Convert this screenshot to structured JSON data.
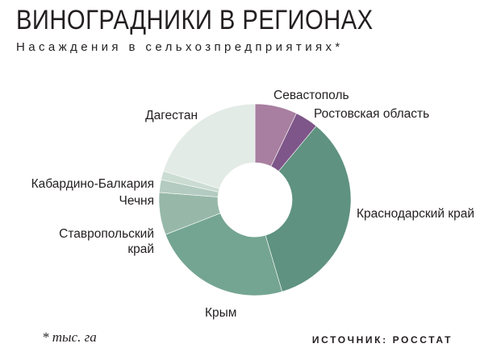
{
  "header": {
    "title": "ВИНОГРАДНИКИ В РЕГИОНАХ",
    "subtitle": "Насаждения в сельхозпредприятиях*"
  },
  "footer": {
    "footnote": "* тыс. га",
    "source": "ИСТОЧНИК: РОССТАТ"
  },
  "chart_data": {
    "type": "pie",
    "subtype": "donut",
    "unit": "тыс. га",
    "legend": "none",
    "categories": [
      "Севастополь",
      "Ростовская область",
      "Краснодарский край",
      "Крым",
      "Ставропольский край",
      "Чечня",
      "Кабардино-Балкария",
      "Дагестан"
    ],
    "labels": [
      [
        "Севастополь"
      ],
      [
        "Ростовская область"
      ],
      [
        "Краснодарский край"
      ],
      [
        "Крым"
      ],
      [
        "Ставропольский",
        "край"
      ],
      [
        "Чечня"
      ],
      [
        "Кабардино-Балкария"
      ],
      [
        "Дагестан"
      ]
    ],
    "values": [
      5.3,
      2.9,
      25.6,
      17.6,
      5.3,
      1.6,
      1.1,
      15.0
    ],
    "colors": [
      "#a87fa0",
      "#7e5689",
      "#5f9281",
      "#74a592",
      "#97b8a9",
      "#b3cbc0",
      "#cbdcd3",
      "#e3ebe7"
    ]
  }
}
